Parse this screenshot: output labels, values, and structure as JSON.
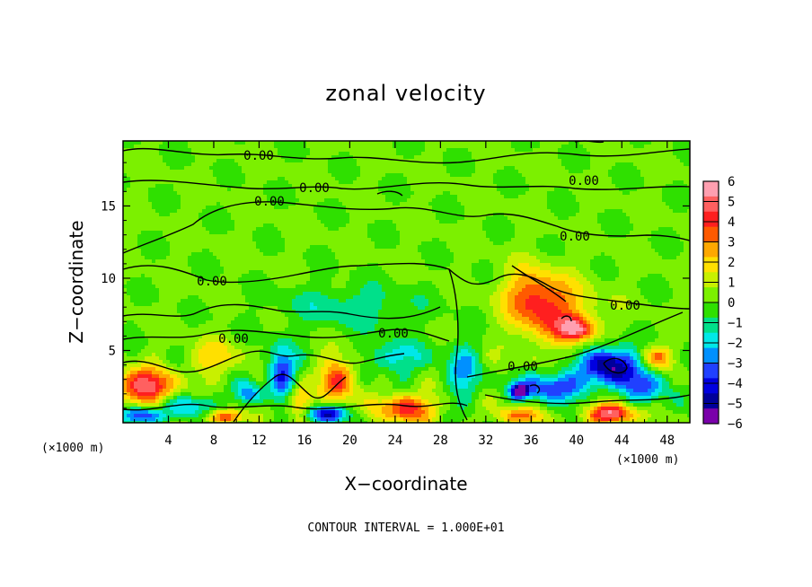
{
  "chart_data": {
    "type": "heatmap",
    "title": "zonal velocity",
    "xlabel": "X−coordinate",
    "ylabel": "Z−coordinate",
    "x_unit": "(×1000 m)",
    "z_unit": "(×1000 m)",
    "xlim": [
      0,
      50
    ],
    "ylim": [
      0,
      19.5
    ],
    "x_ticks": [
      "4",
      "8",
      "12",
      "16",
      "20",
      "24",
      "28",
      "32",
      "36",
      "40",
      "44",
      "48"
    ],
    "y_ticks": [
      "5",
      "10",
      "15"
    ],
    "colorbar": {
      "ticks": [
        "6",
        "5",
        "4",
        "3",
        "2",
        "1",
        "0",
        "−1",
        "−2",
        "−3",
        "−4",
        "−5",
        "−6"
      ],
      "range": [
        -6,
        6
      ],
      "colors": [
        "#ff9fb0",
        "#ff6060",
        "#ff1f1f",
        "#ff5a00",
        "#ffa800",
        "#ffe000",
        "#c8f000",
        "#7cf000",
        "#2fe000",
        "#00e08a",
        "#00e8e8",
        "#0090ff",
        "#2040ff",
        "#0000e0",
        "#00009a",
        "#7a00aa"
      ]
    },
    "contour_level_label": "0.00",
    "contour_labels": [
      "0.00",
      "0.00",
      "0.00",
      "0.00",
      "0.00",
      "0.00",
      "0.00",
      "0.00",
      "0.00",
      "0.00"
    ],
    "footer": "CONTOUR INTERVAL = 1.000E+01",
    "features": [
      {
        "x": 38,
        "z": 7.5,
        "v": 3.0,
        "sx": 3.5,
        "sz": 2.2
      },
      {
        "x": 36,
        "z": 9.0,
        "v": 2.5,
        "sx": 2.5,
        "sz": 1.8
      },
      {
        "x": 40,
        "z": 6.5,
        "v": 4.0,
        "sx": 1.6,
        "sz": 0.8
      },
      {
        "x": 43,
        "z": 4.0,
        "v": -5.5,
        "sx": 2.5,
        "sz": 1.3
      },
      {
        "x": 38,
        "z": 2.5,
        "v": -4.0,
        "sx": 3.0,
        "sz": 1.0
      },
      {
        "x": 35,
        "z": 2.2,
        "v": -5.5,
        "sx": 0.8,
        "sz": 0.5
      },
      {
        "x": 46,
        "z": 2.5,
        "v": -3.0,
        "sx": 2.0,
        "sz": 1.2
      },
      {
        "x": 43,
        "z": 0.6,
        "v": 5.5,
        "sx": 2.0,
        "sz": 0.7
      },
      {
        "x": 2,
        "z": 2.5,
        "v": 5.0,
        "sx": 2.5,
        "sz": 1.2
      },
      {
        "x": 1.5,
        "z": 0.5,
        "v": -4.5,
        "sx": 2.0,
        "sz": 0.6
      },
      {
        "x": 14,
        "z": 3.5,
        "v": -4.0,
        "sx": 1.2,
        "sz": 1.8
      },
      {
        "x": 11,
        "z": 2.0,
        "v": -3.0,
        "sx": 1.2,
        "sz": 0.8
      },
      {
        "x": 19,
        "z": 3.0,
        "v": 4.0,
        "sx": 1.5,
        "sz": 1.5
      },
      {
        "x": 18,
        "z": 0.6,
        "v": -4.5,
        "sx": 1.8,
        "sz": 0.6
      },
      {
        "x": 25,
        "z": 1.0,
        "v": 4.0,
        "sx": 2.5,
        "sz": 1.0
      },
      {
        "x": 30,
        "z": 3.5,
        "v": -2.5,
        "sx": 1.5,
        "sz": 2.0
      },
      {
        "x": 15.5,
        "z": 1.5,
        "v": 3.0,
        "sx": 1.0,
        "sz": 1.0
      },
      {
        "x": 24,
        "z": 4.5,
        "v": -2.0,
        "sx": 3.0,
        "sz": 1.2
      },
      {
        "x": 20,
        "z": 8.0,
        "v": -1.5,
        "sx": 6.0,
        "sz": 1.5
      },
      {
        "x": 8,
        "z": 4.5,
        "v": 2.0,
        "sx": 2.0,
        "sz": 1.2
      },
      {
        "x": 47,
        "z": 4.5,
        "v": 3.0,
        "sx": 1.5,
        "sz": 0.8
      },
      {
        "x": 35,
        "z": 0.5,
        "v": 3.0,
        "sx": 2.0,
        "sz": 0.6
      },
      {
        "x": 6,
        "z": 1.2,
        "v": -2.5,
        "sx": 2.0,
        "sz": 0.8
      },
      {
        "x": 9,
        "z": 0.4,
        "v": 4.0,
        "sx": 1.5,
        "sz": 0.5
      }
    ]
  }
}
